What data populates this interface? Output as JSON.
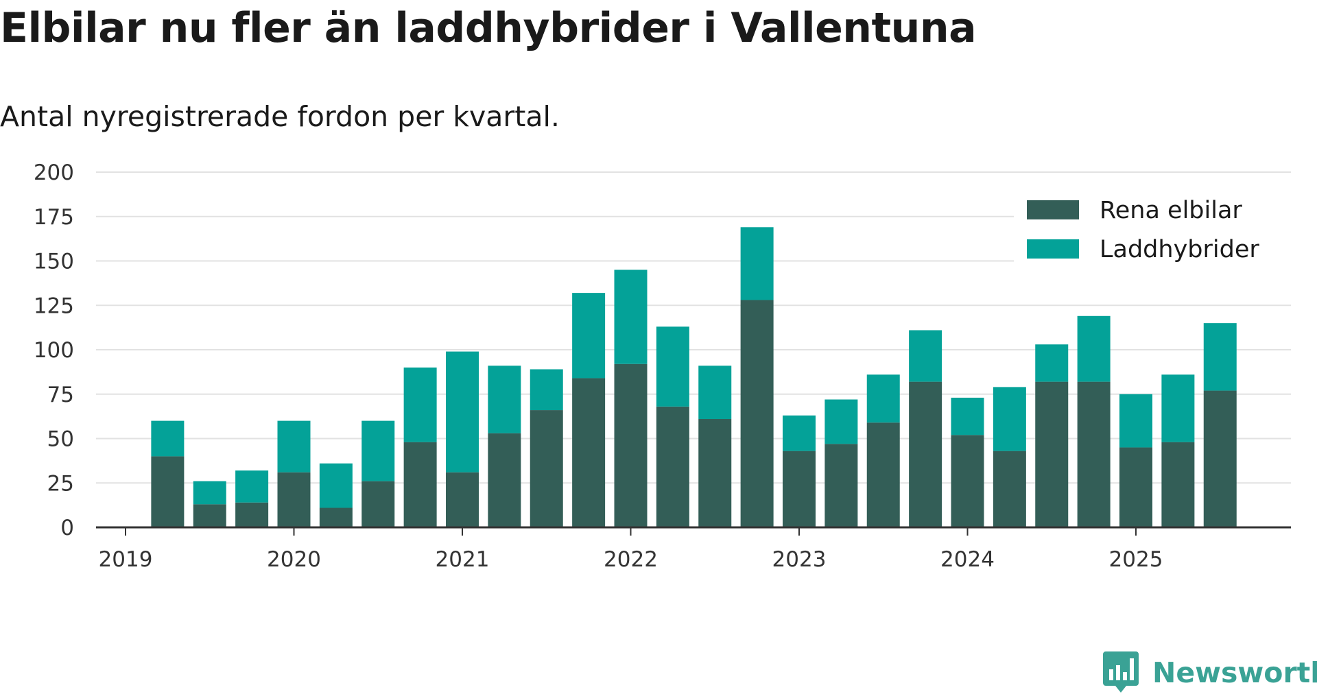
{
  "title": "Elbilar nu fler än laddhybrider i Vallentuna",
  "subtitle": "Antal nyregistrerade fordon per kvartal.",
  "brand": "Newsworthy",
  "colors": {
    "elbilar": "#335e57",
    "laddhybrider": "#04a298",
    "grid": "#e2e2e2",
    "axis": "#333333"
  },
  "chart_data": {
    "type": "bar",
    "stacked": true,
    "title": "Elbilar nu fler än laddhybrider i Vallentuna",
    "subtitle": "Antal nyregistrerade fordon per kvartal.",
    "xlabel": "",
    "ylabel": "",
    "ylim": [
      0,
      200
    ],
    "yticks": [
      0,
      25,
      50,
      75,
      100,
      125,
      150,
      175,
      200
    ],
    "xtick_labels": [
      "2019",
      "2020",
      "2021",
      "2022",
      "2023",
      "2024",
      "2025"
    ],
    "grid": true,
    "legend_position": "top-right",
    "categories": [
      "2019 Q2",
      "2019 Q3",
      "2019 Q4",
      "2020 Q1",
      "2020 Q2",
      "2020 Q3",
      "2020 Q4",
      "2021 Q1",
      "2021 Q2",
      "2021 Q3",
      "2021 Q4",
      "2022 Q1",
      "2022 Q2",
      "2022 Q3",
      "2022 Q4",
      "2023 Q1",
      "2023 Q2",
      "2023 Q3",
      "2023 Q4",
      "2024 Q1",
      "2024 Q2",
      "2024 Q3",
      "2024 Q4",
      "2025 Q1",
      "2025 Q2",
      "2025 Q3"
    ],
    "series": [
      {
        "name": "Rena elbilar",
        "values": [
          40,
          13,
          14,
          31,
          11,
          26,
          48,
          31,
          53,
          66,
          84,
          92,
          68,
          61,
          128,
          43,
          47,
          59,
          82,
          52,
          43,
          82,
          82,
          45,
          48,
          77
        ]
      },
      {
        "name": "Laddhybrider",
        "values": [
          20,
          13,
          18,
          29,
          25,
          34,
          42,
          68,
          38,
          23,
          48,
          53,
          45,
          30,
          41,
          20,
          25,
          27,
          29,
          21,
          36,
          21,
          37,
          30,
          38,
          38
        ]
      }
    ]
  }
}
